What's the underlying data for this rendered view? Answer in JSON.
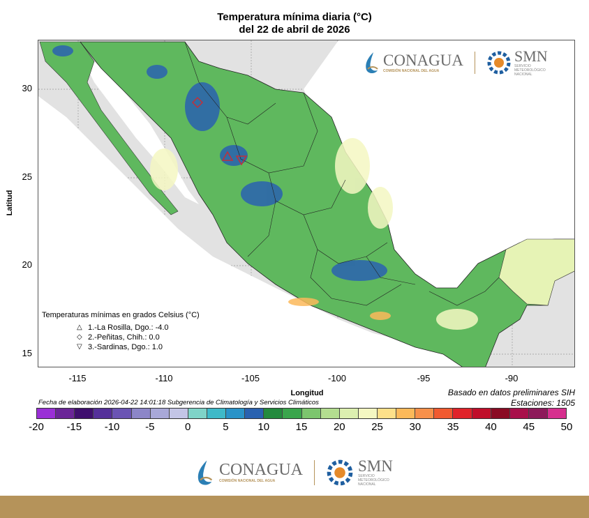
{
  "title_line1": "Temperatura mínima diaria (°C)",
  "title_line2": "del 22 de abril de 2026",
  "axes": {
    "ylabel": "Latitud",
    "xlabel": "Longitud",
    "lat_ticks": [
      "30",
      "25",
      "20",
      "15"
    ],
    "lon_ticks": [
      "-115",
      "-110",
      "-105",
      "-100",
      "-95",
      "-90"
    ]
  },
  "legend": {
    "title": "Temperaturas mínimas en grados Celsius (°C)",
    "items": [
      {
        "symbol": "△",
        "text": "1.-La Rosilla, Dgo.: -4.0"
      },
      {
        "symbol": "◇",
        "text": "2.-Peñitas, Chih.: 0.0"
      },
      {
        "symbol": "▽",
        "text": "3.-Sardinas, Dgo.: 1.0"
      }
    ]
  },
  "basis_text": "Basado en datos preliminares SIH",
  "stations_text": "Estaciones:  1505",
  "footnote": "Fecha de elaboración 2026-04-22 14:01:18 Subgerencia de Climatología y Servicios Climáticos",
  "colorbar": {
    "labels": [
      "-20",
      "-15",
      "-10",
      "-5",
      "0",
      "5",
      "10",
      "15",
      "20",
      "25",
      "30",
      "35",
      "40",
      "45",
      "50"
    ],
    "colors": [
      "#9a2fd6",
      "#6a2597",
      "#3f0f6e",
      "#55309a",
      "#6a54b3",
      "#8c86c8",
      "#a8a8d8",
      "#c3c5e6",
      "#7fd3c8",
      "#3fb9c8",
      "#2a93c8",
      "#2a62b0",
      "#248a3e",
      "#3aa54c",
      "#7cc56e",
      "#b3dd90",
      "#dcefb0",
      "#f4f7c2",
      "#fde08a",
      "#fcb95a",
      "#f7904a",
      "#f05a30",
      "#e0232a",
      "#c00e2a",
      "#8a0a23",
      "#a8104a",
      "#8d1a5a",
      "#d62f8e"
    ]
  },
  "logo": {
    "conagua_name": "CONAGUA",
    "conagua_sub": "COMISIÓN NACIONAL DEL AGUA",
    "smn_name": "SMN",
    "smn_sub1": "SERVICIO",
    "smn_sub2": "METEOROLÓGICO",
    "smn_sub3": "NACIONAL"
  },
  "colors": {
    "land_default": "#5fb85e",
    "sea": "#ffffff",
    "background": "#e2e2e2",
    "footer_bar": "#b5935a"
  }
}
